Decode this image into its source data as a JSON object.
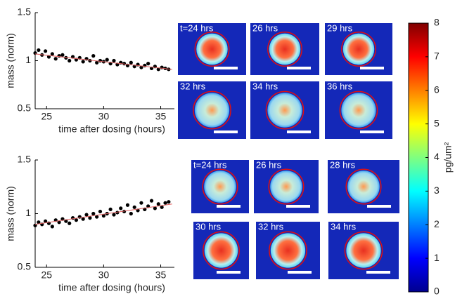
{
  "chart_data": [
    {
      "type": "scatter",
      "ylabel": "mass (norm)",
      "xlabel": "time after dosing (hours)",
      "xlim": [
        24,
        36.2
      ],
      "ylim": [
        0.5,
        1.5
      ],
      "xticks": [
        25,
        30,
        35
      ],
      "yticks": [
        0.5,
        1,
        1.5
      ],
      "series": [
        {
          "color": "#000000",
          "x": [
            24.0,
            24.3,
            24.6,
            24.9,
            25.2,
            25.5,
            25.8,
            26.1,
            26.4,
            26.7,
            27.0,
            27.3,
            27.6,
            27.9,
            28.2,
            28.5,
            28.8,
            29.1,
            29.4,
            29.7,
            30.0,
            30.3,
            30.6,
            30.9,
            31.2,
            31.5,
            31.8,
            32.1,
            32.4,
            32.7,
            33.0,
            33.3,
            33.6,
            33.9,
            34.2,
            34.5,
            34.8,
            35.1,
            35.4,
            35.7
          ],
          "values": [
            1.08,
            1.11,
            1.06,
            1.1,
            1.04,
            1.07,
            1.02,
            1.05,
            1.06,
            1.03,
            1.0,
            1.04,
            1.01,
            1.03,
            0.99,
            1.02,
            1.0,
            1.05,
            0.98,
            1.0,
            0.99,
            1.01,
            0.97,
            1.0,
            0.96,
            0.98,
            0.97,
            0.95,
            0.98,
            0.94,
            0.96,
            0.93,
            0.95,
            0.97,
            0.92,
            0.94,
            0.91,
            0.93,
            0.92,
            0.91
          ]
        },
        {
          "color": "#e06060",
          "style": "line",
          "x": [
            24,
            36
          ],
          "values": [
            1.07,
            0.91
          ]
        }
      ]
    },
    {
      "type": "scatter",
      "ylabel": "mass (norm)",
      "xlabel": "time after dosing (hours)",
      "xlim": [
        24,
        36.2
      ],
      "ylim": [
        0.5,
        1.5
      ],
      "xticks": [
        25,
        30,
        35
      ],
      "yticks": [
        0.5,
        1,
        1.5
      ],
      "series": [
        {
          "color": "#000000",
          "x": [
            24.0,
            24.3,
            24.6,
            24.9,
            25.2,
            25.5,
            25.8,
            26.1,
            26.4,
            26.7,
            27.0,
            27.3,
            27.6,
            27.9,
            28.2,
            28.5,
            28.8,
            29.1,
            29.4,
            29.7,
            30.0,
            30.3,
            30.6,
            30.9,
            31.2,
            31.5,
            31.8,
            32.1,
            32.4,
            32.7,
            33.0,
            33.3,
            33.6,
            33.9,
            34.2,
            34.5,
            34.8,
            35.1,
            35.4,
            35.7
          ],
          "values": [
            0.89,
            0.92,
            0.9,
            0.93,
            0.91,
            0.88,
            0.94,
            0.92,
            0.95,
            0.93,
            0.91,
            0.96,
            0.94,
            0.97,
            0.95,
            0.99,
            0.96,
            1.0,
            0.97,
            1.02,
            0.98,
            1.0,
            1.04,
            0.99,
            1.01,
            1.05,
            1.02,
            1.08,
            1.0,
            1.06,
            1.03,
            1.1,
            1.04,
            1.07,
            1.12,
            1.05,
            1.09,
            1.06,
            1.1,
            1.11
          ]
        },
        {
          "color": "#e06060",
          "style": "line",
          "x": [
            24,
            36
          ],
          "values": [
            0.9,
            1.09
          ]
        }
      ]
    },
    {
      "type": "colorbar",
      "label": "pg/um²",
      "ylim": [
        0,
        8
      ],
      "yticks": [
        0,
        1,
        2,
        3,
        4,
        5,
        6,
        7,
        8
      ]
    }
  ],
  "panels": [
    {
      "labels": [
        [
          "t=24 hrs",
          "26 hrs",
          "29 hrs"
        ],
        [
          "32 hrs",
          "34 hrs",
          "36 hrs"
        ]
      ]
    },
    {
      "labels": [
        [
          "t=24 hrs",
          "26 hrs",
          "28 hrs"
        ],
        [
          "30 hrs",
          "32 hrs",
          "34 hrs"
        ]
      ]
    }
  ]
}
